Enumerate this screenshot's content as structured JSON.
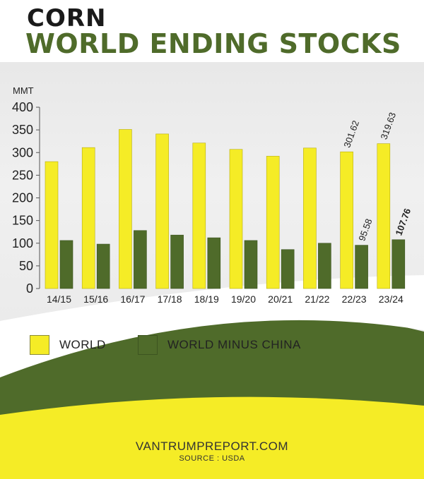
{
  "header": {
    "title_small": "CORN",
    "title_big": "WORLD ENDING STOCKS"
  },
  "colors": {
    "world": "#f5ec26",
    "world_minus_china": "#4f6b2a",
    "yellow_band": "#f5ec26",
    "green_band": "#4f6b2a"
  },
  "chart_data": {
    "type": "bar",
    "title": "WORLD ENDING STOCKS",
    "ylabel": "MMT",
    "ylim": [
      0,
      400
    ],
    "yticks": [
      0,
      50,
      100,
      150,
      200,
      250,
      300,
      350,
      400
    ],
    "categories": [
      "14/15",
      "15/16",
      "16/17",
      "17/18",
      "18/19",
      "19/20",
      "20/21",
      "21/22",
      "22/23",
      "23/24"
    ],
    "series": [
      {
        "name": "WORLD",
        "values": [
          280,
          311,
          351,
          341,
          321,
          307,
          292,
          310,
          301.62,
          319.63
        ],
        "labels": [
          "",
          "",
          "",
          "",
          "",
          "",
          "",
          "",
          "301.62",
          "319.63"
        ]
      },
      {
        "name": "WORLD MINUS CHINA",
        "values": [
          106,
          98,
          128,
          118,
          112,
          106,
          86,
          100,
          95.58,
          107.76
        ],
        "labels": [
          "",
          "",
          "",
          "",
          "",
          "",
          "",
          "",
          "95.58",
          "107.76"
        ]
      }
    ],
    "legend": "bottom",
    "grid": false
  },
  "footer": {
    "site": "VANTRUMPREPORT.COM",
    "source": "SOURCE : USDA"
  }
}
